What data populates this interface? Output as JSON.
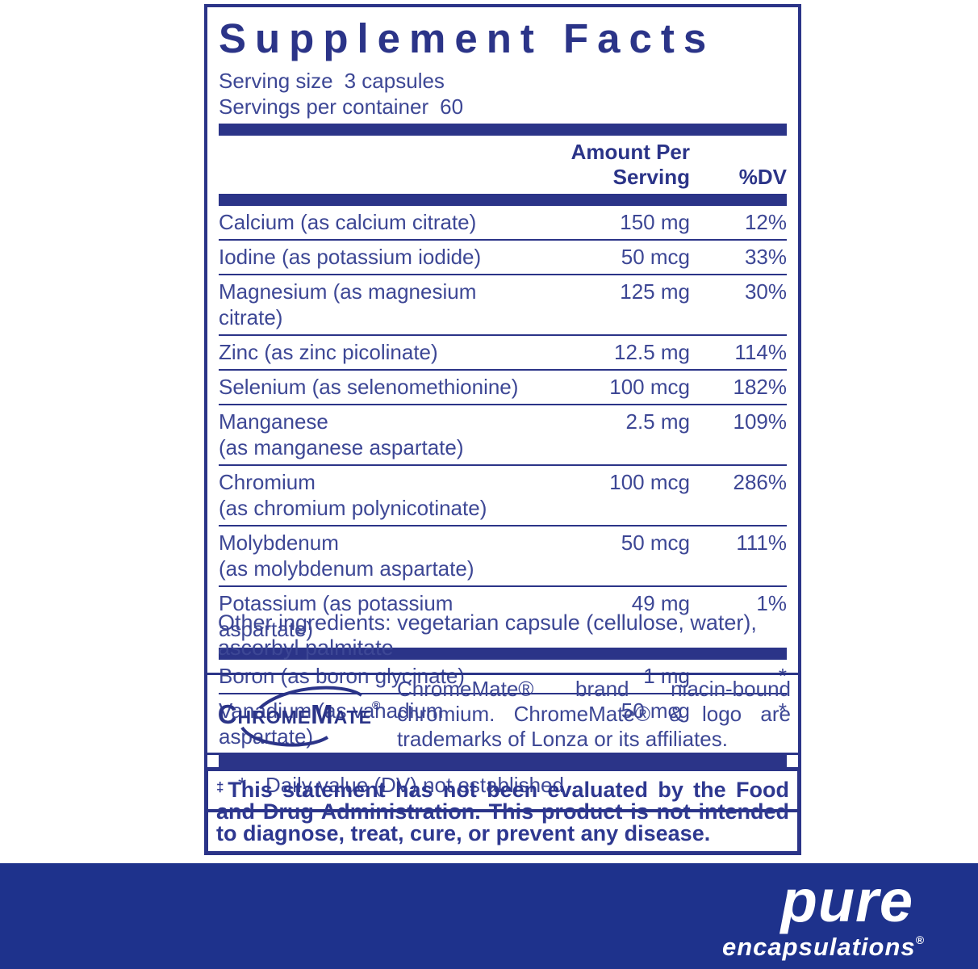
{
  "panel": {
    "title": "Supplement Facts",
    "serving_size_label": "Serving size",
    "serving_size_value": "3 capsules",
    "servings_label": "Servings per container",
    "servings_value": "60",
    "col_amount": "Amount Per Serving",
    "col_dv": "%DV",
    "rows": [
      {
        "name": "Calcium (as calcium citrate)",
        "amount": "150 mg",
        "dv": "12%"
      },
      {
        "name": "Iodine (as potassium iodide)",
        "amount": "50 mcg",
        "dv": "33%"
      },
      {
        "name": "Magnesium (as magnesium citrate)",
        "amount": "125 mg",
        "dv": "30%"
      },
      {
        "name": "Zinc (as zinc picolinate)",
        "amount": "12.5 mg",
        "dv": "114%"
      },
      {
        "name": "Selenium (as selenomethionine)",
        "amount": "100 mcg",
        "dv": "182%"
      },
      {
        "name": "Manganese",
        "name2": "(as manganese aspartate)",
        "amount": "2.5 mg",
        "dv": "109%"
      },
      {
        "name": "Chromium",
        "name2": "(as chromium polynicotinate)",
        "amount": "100 mcg",
        "dv": "286%"
      },
      {
        "name": "Molybdenum",
        "name2": "(as molybdenum aspartate)",
        "amount": "50 mcg",
        "dv": "111%"
      },
      {
        "name": "Potassium (as potassium aspartate)",
        "amount": "49 mg",
        "dv": "1%"
      }
    ],
    "sub_rows": [
      {
        "name": "Boron (as boron glycinate)",
        "amount": "1 mg",
        "dv": "*"
      },
      {
        "name": "Vanadium (as vanadium aspartate)",
        "amount": "50 mcg",
        "dv": "*"
      }
    ],
    "footnote_star": "*",
    "footnote_text": "Daily value (DV) not established"
  },
  "other_ingredients": "Other ingredients: vegetarian capsule (cellulose, water), ascorbyl palmitate",
  "chromemate": {
    "logo_text": "ChromeMate",
    "logo_reg": "®",
    "text": "ChromeMate® brand niacin-bound chromium. ChromeMate® & logo are trademarks of Lonza or its affiliates."
  },
  "disclaimer": {
    "dagger": "‡",
    "text": "This statement has not been evaluated by the Food and Drug Administration. This product is not intended to diagnose, treat, cure, or prevent any disease."
  },
  "footer": {
    "brand_top": "pure",
    "brand_bottom": "encapsulations",
    "reg": "®"
  },
  "colors": {
    "navy": "#2b3488",
    "body_text": "#3d4795",
    "footer_bg": "#1e328c",
    "logo_white": "#ffffff"
  }
}
